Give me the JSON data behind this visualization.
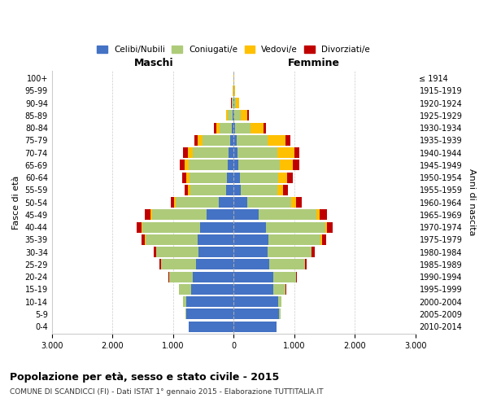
{
  "age_groups": [
    "0-4",
    "5-9",
    "10-14",
    "15-19",
    "20-24",
    "25-29",
    "30-34",
    "35-39",
    "40-44",
    "45-49",
    "50-54",
    "55-59",
    "60-64",
    "65-69",
    "70-74",
    "75-79",
    "80-84",
    "85-89",
    "90-94",
    "95-99",
    "100+"
  ],
  "birth_years": [
    "2010-2014",
    "2005-2009",
    "2000-2004",
    "1995-1999",
    "1990-1994",
    "1985-1989",
    "1980-1984",
    "1975-1979",
    "1970-1974",
    "1965-1969",
    "1960-1964",
    "1955-1959",
    "1950-1954",
    "1945-1949",
    "1940-1944",
    "1935-1939",
    "1930-1934",
    "1925-1929",
    "1920-1924",
    "1915-1919",
    "≤ 1914"
  ],
  "male": {
    "celibi": [
      740,
      780,
      780,
      700,
      680,
      620,
      580,
      600,
      550,
      450,
      250,
      130,
      110,
      95,
      80,
      60,
      30,
      10,
      5,
      2,
      2
    ],
    "coniugati": [
      5,
      20,
      50,
      200,
      380,
      580,
      700,
      850,
      950,
      900,
      700,
      580,
      620,
      650,
      600,
      450,
      200,
      80,
      20,
      5,
      2
    ],
    "vedovi": [
      0,
      0,
      0,
      1,
      2,
      3,
      5,
      10,
      15,
      20,
      30,
      40,
      50,
      70,
      80,
      80,
      60,
      30,
      10,
      3,
      1
    ],
    "divorziati": [
      0,
      0,
      0,
      5,
      10,
      20,
      40,
      60,
      80,
      100,
      60,
      60,
      70,
      80,
      70,
      60,
      30,
      10,
      2,
      0,
      0
    ]
  },
  "female": {
    "nubili": [
      710,
      750,
      740,
      660,
      650,
      590,
      560,
      570,
      530,
      420,
      230,
      120,
      100,
      80,
      70,
      55,
      30,
      12,
      8,
      3,
      2
    ],
    "coniugate": [
      5,
      20,
      50,
      200,
      380,
      590,
      720,
      870,
      980,
      950,
      720,
      600,
      640,
      680,
      650,
      500,
      250,
      100,
      30,
      8,
      2
    ],
    "vedove": [
      0,
      0,
      0,
      2,
      3,
      5,
      10,
      20,
      30,
      50,
      80,
      100,
      150,
      220,
      280,
      300,
      220,
      120,
      50,
      10,
      3
    ],
    "divorziate": [
      0,
      0,
      0,
      5,
      10,
      25,
      50,
      70,
      100,
      120,
      90,
      80,
      90,
      100,
      90,
      80,
      40,
      15,
      3,
      1,
      0
    ]
  },
  "colors": {
    "celibi": "#4472C4",
    "coniugati": "#AECB7A",
    "vedovi": "#FFC000",
    "divorziati": "#C00000"
  },
  "xlim": 3000,
  "xtick_vals": [
    -3000,
    -2000,
    -1000,
    0,
    1000,
    2000,
    3000
  ],
  "xtick_labels": [
    "3.000",
    "2.000",
    "1.000",
    "0",
    "1.000",
    "2.000",
    "3.000"
  ],
  "title": "Popolazione per età, sesso e stato civile - 2015",
  "subtitle": "COMUNE DI SCANDICCI (FI) - Dati ISTAT 1° gennaio 2015 - Elaborazione TUTTITALIA.IT",
  "ylabel": "Fasce di età",
  "ylabel_right": "Anni di nascita",
  "label_maschi": "Maschi",
  "label_femmine": "Femmine",
  "legend_labels": [
    "Celibi/Nubili",
    "Coniugati/e",
    "Vedovi/e",
    "Divorziati/e"
  ],
  "background_color": "#ffffff",
  "grid_color": "#cccccc"
}
